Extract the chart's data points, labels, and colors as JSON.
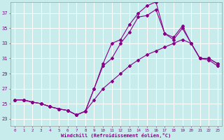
{
  "xlabel": "Windchill (Refroidissement éolien,°C)",
  "background_color": "#c8ecec",
  "line_color": "#880088",
  "grid_color": "#aadddd",
  "xlim": [
    -0.5,
    23.5
  ],
  "ylim": [
    22.0,
    38.5
  ],
  "yticks": [
    23,
    25,
    27,
    29,
    31,
    33,
    35,
    37
  ],
  "xticks": [
    0,
    1,
    2,
    3,
    4,
    5,
    6,
    7,
    8,
    9,
    10,
    11,
    12,
    13,
    14,
    15,
    16,
    17,
    18,
    19,
    20,
    21,
    22,
    23
  ],
  "lines": [
    {
      "x": [
        0,
        1,
        2,
        3,
        4,
        5,
        6,
        7,
        8,
        9,
        10,
        11,
        12,
        13,
        14,
        15,
        16,
        17,
        18,
        19,
        20,
        21,
        22,
        23
      ],
      "y": [
        25.5,
        25.5,
        25.2,
        25.0,
        24.6,
        24.3,
        24.1,
        23.5,
        24.0,
        25.5,
        27.0,
        28.0,
        29.0,
        30.0,
        30.8,
        31.5,
        32.0,
        32.5,
        33.0,
        33.5,
        33.0,
        31.0,
        30.8,
        30.0
      ]
    },
    {
      "x": [
        0,
        1,
        2,
        3,
        4,
        5,
        6,
        7,
        8,
        9,
        10,
        11,
        12,
        13,
        14,
        15,
        16,
        17,
        18,
        19,
        20,
        21,
        22,
        23
      ],
      "y": [
        25.5,
        25.5,
        25.2,
        25.0,
        24.6,
        24.3,
        24.1,
        23.5,
        24.0,
        27.0,
        30.0,
        31.0,
        33.0,
        34.5,
        36.5,
        36.7,
        37.5,
        34.3,
        33.5,
        35.0,
        33.0,
        31.0,
        31.0,
        30.3
      ]
    },
    {
      "x": [
        0,
        1,
        2,
        3,
        4,
        5,
        6,
        7,
        8,
        9,
        10,
        11,
        12,
        13,
        14,
        15,
        16,
        17,
        18,
        19,
        20,
        21,
        22,
        23
      ],
      "y": [
        25.5,
        25.5,
        25.2,
        25.0,
        24.6,
        24.3,
        24.1,
        23.5,
        24.0,
        27.0,
        30.3,
        33.0,
        33.5,
        35.5,
        37.0,
        38.0,
        38.5,
        34.3,
        33.8,
        35.3,
        33.0,
        31.0,
        31.0,
        30.3
      ]
    }
  ]
}
